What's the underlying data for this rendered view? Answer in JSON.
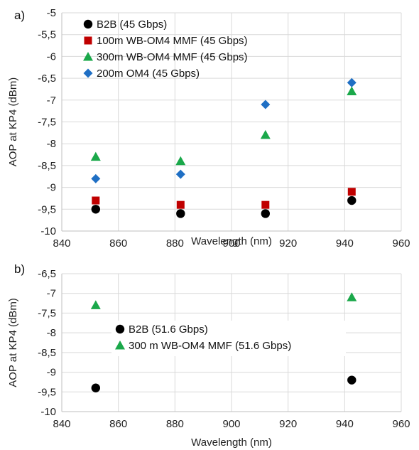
{
  "chart_data": [
    {
      "panel_label": "a)",
      "type": "scatter",
      "xlabel": "Wavelength (nm)",
      "ylabel": "AOP at KP4 (dBm)",
      "xlim": [
        840,
        960
      ],
      "ylim": [
        -10,
        -5
      ],
      "xticks": [
        840,
        860,
        880,
        900,
        920,
        940,
        960
      ],
      "xtick_labels": [
        "840",
        "860",
        "880",
        "900",
        "920",
        "940",
        "960"
      ],
      "yticks": [
        -10,
        -9.5,
        -9,
        -8.5,
        -8,
        -7.5,
        -7,
        -6.5,
        -6,
        -5.5,
        -5
      ],
      "ytick_labels": [
        "-10",
        "-9,5",
        "-9",
        "-8,5",
        "-8",
        "-7,5",
        "-7",
        "-6,5",
        "-6",
        "-5,5",
        "-5"
      ],
      "grid": true,
      "legend_position": "top-left",
      "series": [
        {
          "name": "B2B (45 Gbps)",
          "marker": "circle",
          "color": "#000000",
          "x": [
            852,
            882,
            912,
            942.5
          ],
          "y": [
            -9.5,
            -9.6,
            -9.6,
            -9.3
          ]
        },
        {
          "name": "100m WB-OM4 MMF (45 Gbps)",
          "marker": "square",
          "color": "#c00000",
          "x": [
            852,
            882,
            912,
            942.5
          ],
          "y": [
            -9.3,
            -9.4,
            -9.4,
            -9.1
          ]
        },
        {
          "name": "300m WB-OM4 MMF (45 Gbps)",
          "marker": "triangle",
          "color": "#1aa84a",
          "x": [
            852,
            882,
            912,
            942.5
          ],
          "y": [
            -8.3,
            -8.4,
            -7.8,
            -6.8
          ]
        },
        {
          "name": "200m OM4 (45 Gbps)",
          "marker": "diamond",
          "color": "#1f6fc4",
          "x": [
            852,
            882,
            912,
            942.5
          ],
          "y": [
            -8.8,
            -8.7,
            -7.1,
            -6.6
          ]
        }
      ]
    },
    {
      "panel_label": "b)",
      "type": "scatter",
      "xlabel": "Wavelength (nm)",
      "ylabel": "AOP at KP4 (dBm)",
      "xlim": [
        840,
        960
      ],
      "ylim": [
        -10,
        -6.5
      ],
      "xticks": [
        840,
        860,
        880,
        900,
        920,
        940,
        960
      ],
      "xtick_labels": [
        "840",
        "860",
        "880",
        "900",
        "920",
        "940",
        "960"
      ],
      "yticks": [
        -10,
        -9.5,
        -9,
        -8.5,
        -8,
        -7.5,
        -7,
        -6.5
      ],
      "ytick_labels": [
        "-10",
        "-9,5",
        "-9",
        "-8,5",
        "-8",
        "-7,5",
        "-7",
        "-6,5"
      ],
      "grid": true,
      "legend_position": "center",
      "series": [
        {
          "name": "B2B (51.6 Gbps)",
          "marker": "circle",
          "color": "#000000",
          "x": [
            852,
            942.5
          ],
          "y": [
            -9.4,
            -9.2
          ]
        },
        {
          "name": "300 m WB-OM4 MMF (51.6 Gbps)",
          "marker": "triangle",
          "color": "#1aa84a",
          "x": [
            852,
            942.5
          ],
          "y": [
            -7.3,
            -7.1
          ]
        }
      ]
    }
  ]
}
